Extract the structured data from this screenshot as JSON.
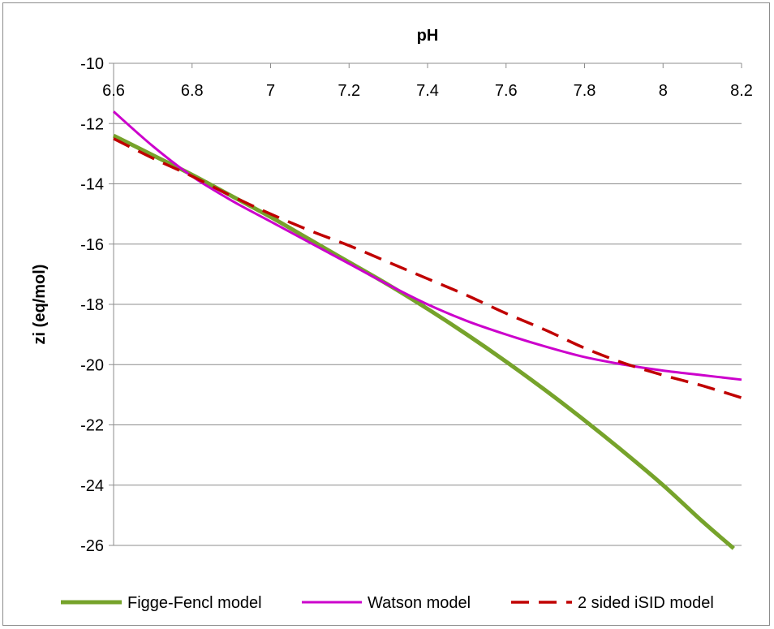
{
  "chart_data": {
    "type": "line",
    "title": "",
    "xlabel": "pH",
    "ylabel": "zi (eq/mol)",
    "xlim": [
      6.6,
      8.2
    ],
    "ylim": [
      -26,
      -10
    ],
    "x_axis_position": "top",
    "grid": "horizontal",
    "legend_position": "bottom",
    "x_ticks": [
      "6.6",
      "6.8",
      "7",
      "7.2",
      "7.4",
      "7.6",
      "7.8",
      "8",
      "8.2"
    ],
    "y_ticks": [
      "-10",
      "-12",
      "-14",
      "-16",
      "-18",
      "-20",
      "-22",
      "-24",
      "-26"
    ],
    "x_tick_values": [
      6.6,
      6.8,
      7.0,
      7.2,
      7.4,
      7.6,
      7.8,
      8.0,
      8.2
    ],
    "y_tick_values": [
      -10,
      -12,
      -14,
      -16,
      -18,
      -20,
      -22,
      -24,
      -26
    ],
    "series": [
      {
        "name": "Figge-Fencl model",
        "color": "#76a32b",
        "style": "solid-thick",
        "x": [
          6.6,
          6.7,
          6.8,
          6.9,
          7.0,
          7.1,
          7.2,
          7.3,
          7.4,
          7.5,
          7.6,
          7.7,
          7.8,
          7.9,
          8.0,
          8.1,
          8.18
        ],
        "y": [
          -12.4,
          -13.05,
          -13.7,
          -14.4,
          -15.1,
          -15.85,
          -16.6,
          -17.35,
          -18.15,
          -19.0,
          -19.9,
          -20.85,
          -21.85,
          -22.9,
          -24.0,
          -25.2,
          -26.1
        ]
      },
      {
        "name": "Watson model",
        "color": "#cc00cc",
        "style": "solid",
        "x": [
          6.6,
          6.7,
          6.8,
          6.9,
          7.0,
          7.1,
          7.2,
          7.3,
          7.4,
          7.5,
          7.6,
          7.7,
          7.8,
          7.9,
          8.0,
          8.1,
          8.2
        ],
        "y": [
          -11.6,
          -12.75,
          -13.75,
          -14.55,
          -15.25,
          -15.95,
          -16.65,
          -17.35,
          -18.0,
          -18.55,
          -19.0,
          -19.4,
          -19.75,
          -20.0,
          -20.2,
          -20.35,
          -20.5
        ]
      },
      {
        "name": "2 sided iSID model",
        "color": "#c00000",
        "style": "dashed",
        "x": [
          6.6,
          6.7,
          6.8,
          6.9,
          7.0,
          7.1,
          7.2,
          7.3,
          7.4,
          7.5,
          7.6,
          7.7,
          7.8,
          7.9,
          8.0,
          8.1,
          8.2
        ],
        "y": [
          -12.5,
          -13.15,
          -13.75,
          -14.4,
          -15.0,
          -15.55,
          -16.05,
          -16.6,
          -17.15,
          -17.7,
          -18.3,
          -18.85,
          -19.45,
          -19.95,
          -20.35,
          -20.7,
          -21.1
        ]
      }
    ]
  }
}
